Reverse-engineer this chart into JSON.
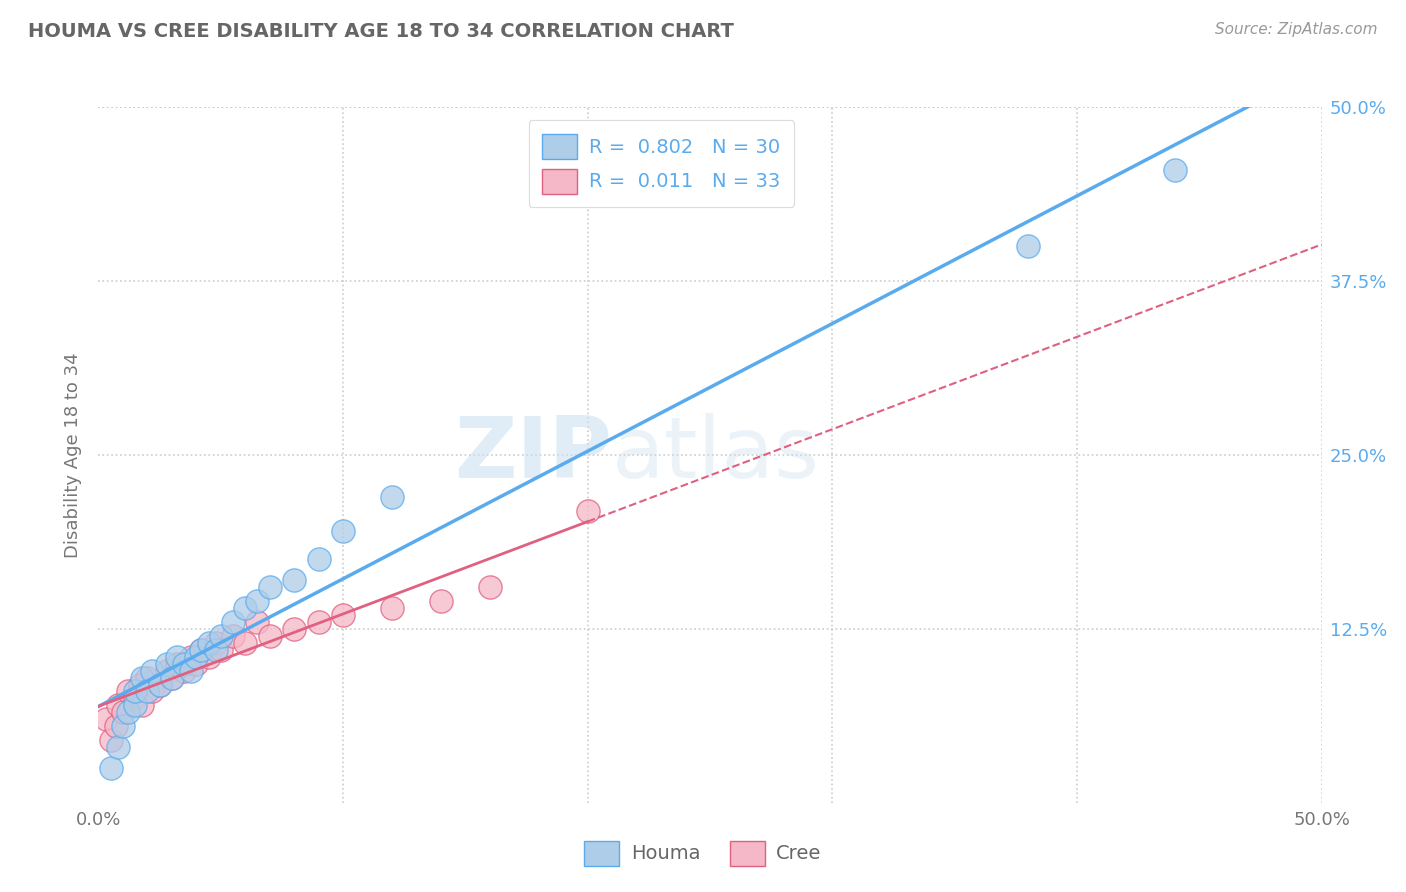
{
  "title": "HOUMA VS CREE DISABILITY AGE 18 TO 34 CORRELATION CHART",
  "source_text": "Source: ZipAtlas.com",
  "ylabel": "Disability Age 18 to 34",
  "xlim": [
    0.0,
    0.5
  ],
  "ylim": [
    0.0,
    0.5
  ],
  "background_color": "#ffffff",
  "houma_color": "#aecde8",
  "cree_color": "#f5b8c8",
  "houma_line_color": "#5aabee",
  "cree_line_color": "#e06080",
  "houma_r": 0.802,
  "houma_n": 30,
  "cree_r": 0.011,
  "cree_n": 33,
  "watermark_zip": "ZIP",
  "watermark_atlas": "atlas",
  "legend_houma": "Houma",
  "legend_cree": "Cree",
  "houma_scatter_x": [
    0.005,
    0.008,
    0.01,
    0.012,
    0.015,
    0.015,
    0.018,
    0.02,
    0.022,
    0.025,
    0.028,
    0.03,
    0.032,
    0.035,
    0.038,
    0.04,
    0.042,
    0.045,
    0.048,
    0.05,
    0.055,
    0.06,
    0.065,
    0.07,
    0.08,
    0.09,
    0.1,
    0.12,
    0.38,
    0.44
  ],
  "houma_scatter_y": [
    0.025,
    0.04,
    0.055,
    0.065,
    0.07,
    0.08,
    0.09,
    0.08,
    0.095,
    0.085,
    0.1,
    0.09,
    0.105,
    0.1,
    0.095,
    0.105,
    0.11,
    0.115,
    0.11,
    0.12,
    0.13,
    0.14,
    0.145,
    0.155,
    0.16,
    0.175,
    0.195,
    0.22,
    0.4,
    0.455
  ],
  "cree_scatter_x": [
    0.003,
    0.005,
    0.007,
    0.008,
    0.01,
    0.012,
    0.015,
    0.017,
    0.018,
    0.02,
    0.022,
    0.025,
    0.028,
    0.03,
    0.032,
    0.035,
    0.038,
    0.04,
    0.042,
    0.045,
    0.048,
    0.05,
    0.055,
    0.06,
    0.065,
    0.07,
    0.08,
    0.09,
    0.1,
    0.12,
    0.14,
    0.16,
    0.2
  ],
  "cree_scatter_y": [
    0.06,
    0.045,
    0.055,
    0.07,
    0.065,
    0.08,
    0.075,
    0.085,
    0.07,
    0.09,
    0.08,
    0.085,
    0.095,
    0.09,
    0.1,
    0.095,
    0.105,
    0.1,
    0.11,
    0.105,
    0.115,
    0.11,
    0.12,
    0.115,
    0.13,
    0.12,
    0.125,
    0.13,
    0.135,
    0.14,
    0.145,
    0.155,
    0.21
  ]
}
